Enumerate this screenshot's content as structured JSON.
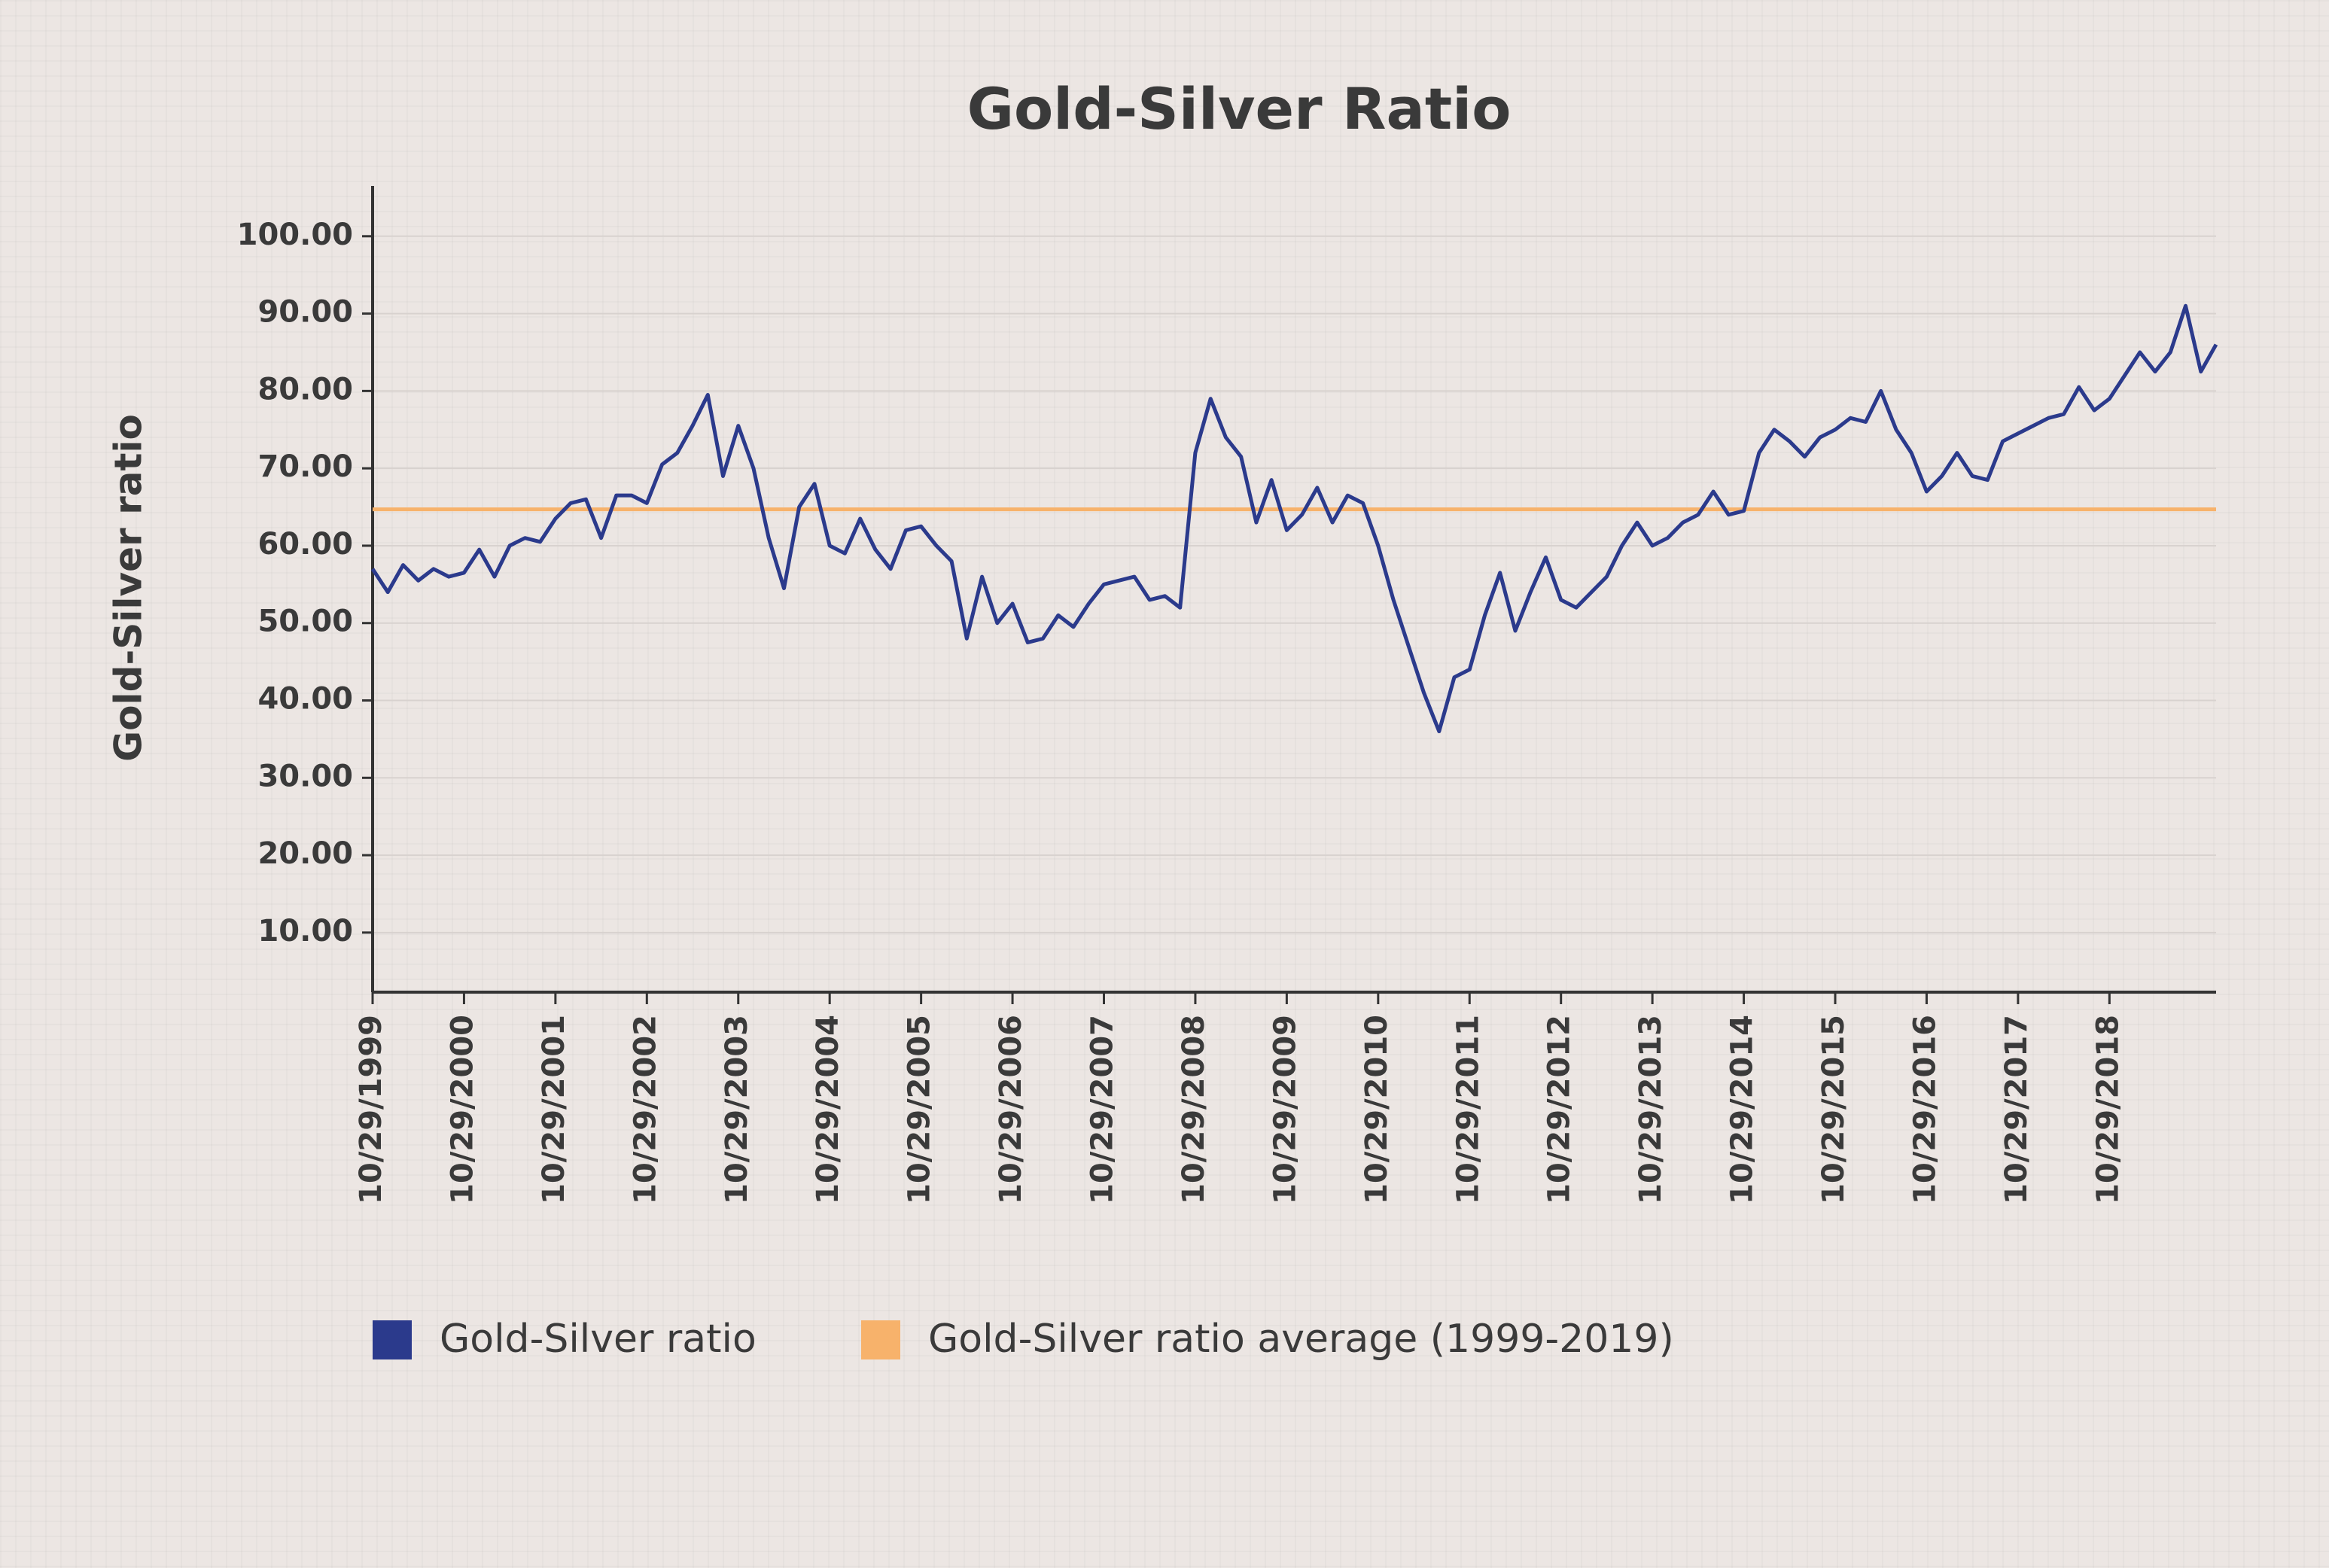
{
  "chart_data": {
    "type": "line",
    "title": "Gold-Silver Ratio",
    "y_label": "Gold-Silver ratio",
    "x": [
      "10/29/1999",
      "12/29/1999",
      "02/29/2000",
      "04/29/2000",
      "06/29/2000",
      "08/29/2000",
      "10/29/2000",
      "12/29/2000",
      "02/29/2001",
      "04/29/2001",
      "06/29/2001",
      "08/29/2001",
      "10/29/2001",
      "12/29/2001",
      "02/29/2002",
      "04/29/2002",
      "06/29/2002",
      "08/29/2002",
      "10/29/2002",
      "12/29/2002",
      "02/29/2003",
      "04/29/2003",
      "06/29/2003",
      "08/29/2003",
      "10/29/2003",
      "12/29/2003",
      "02/29/2004",
      "04/29/2004",
      "06/29/2004",
      "08/29/2004",
      "10/29/2004",
      "12/29/2004",
      "02/29/2005",
      "04/29/2005",
      "06/29/2005",
      "08/29/2005",
      "10/29/2005",
      "12/29/2005",
      "02/29/2006",
      "04/29/2006",
      "06/29/2006",
      "08/29/2006",
      "10/29/2006",
      "12/29/2006",
      "02/29/2007",
      "04/29/2007",
      "06/29/2007",
      "08/29/2007",
      "10/29/2007",
      "12/29/2007",
      "02/29/2008",
      "04/29/2008",
      "06/29/2008",
      "08/29/2008",
      "10/29/2008",
      "12/29/2008",
      "02/29/2009",
      "04/29/2009",
      "06/29/2009",
      "08/29/2009",
      "10/29/2009",
      "12/29/2009",
      "02/29/2010",
      "04/29/2010",
      "06/29/2010",
      "08/29/2010",
      "10/29/2010",
      "12/29/2010",
      "02/29/2011",
      "04/29/2011",
      "06/29/2011",
      "08/29/2011",
      "10/29/2011",
      "12/29/2011",
      "02/29/2012",
      "04/29/2012",
      "06/29/2012",
      "08/29/2012",
      "10/29/2012",
      "12/29/2012",
      "02/29/2013",
      "04/29/2013",
      "06/29/2013",
      "08/29/2013",
      "10/29/2013",
      "12/29/2013",
      "02/29/2014",
      "04/29/2014",
      "06/29/2014",
      "08/29/2014",
      "10/29/2014",
      "12/29/2014",
      "02/29/2015",
      "04/29/2015",
      "06/29/2015",
      "08/29/2015",
      "10/29/2015",
      "12/29/2015",
      "02/29/2016",
      "04/29/2016",
      "06/29/2016",
      "08/29/2016",
      "10/29/2016",
      "12/29/2016",
      "02/29/2017",
      "04/29/2017",
      "06/29/2017",
      "08/29/2017",
      "10/29/2017",
      "12/29/2017",
      "02/29/2018",
      "04/29/2018",
      "06/29/2018",
      "08/29/2018",
      "10/29/2018",
      "12/29/2018",
      "02/29/2019",
      "04/29/2019",
      "06/29/2019",
      "08/29/2019",
      "10/29/2019",
      "12/29/2019"
    ],
    "series": [
      {
        "name": "Gold-Silver ratio",
        "color": "#2b3a8c",
        "values": [
          57,
          54,
          57.5,
          55.5,
          57,
          56,
          56.5,
          59.5,
          56,
          60,
          61,
          60.5,
          63.5,
          65.5,
          66,
          61,
          66.5,
          66.5,
          65.5,
          70.5,
          72,
          75.5,
          79.5,
          69,
          75.5,
          70,
          61,
          54.5,
          65,
          68,
          60,
          59,
          63.5,
          59.5,
          57,
          62,
          62.5,
          60,
          58,
          48,
          56,
          50,
          52.5,
          47.5,
          48,
          51,
          49.5,
          52.5,
          55,
          55.5,
          56,
          53,
          53.5,
          52,
          72,
          79,
          74,
          71.5,
          63,
          68.5,
          62,
          64,
          67.5,
          63,
          66.5,
          65.5,
          60,
          53,
          47,
          41,
          36,
          43,
          44,
          51,
          56.5,
          49,
          54,
          58.5,
          53,
          52,
          54,
          56,
          60,
          63,
          60,
          61,
          63,
          64,
          67,
          64,
          64.5,
          72,
          75,
          73.5,
          71.5,
          74,
          75,
          76.5,
          76,
          80,
          75,
          72,
          67,
          69,
          72,
          69,
          68.5,
          73.5,
          74.5,
          75.5,
          76.5,
          77,
          80.5,
          77.5,
          79,
          82,
          85,
          82.5,
          85,
          91,
          82.5,
          86
        ]
      }
    ],
    "average": {
      "name": "Gold-Silver ratio average (1999-2019)",
      "color": "#f7b26b",
      "value": 64.7
    },
    "xlim": [
      "10/29/1999",
      "12/29/2019"
    ],
    "xticks": [
      "10/29/1999",
      "10/29/2000",
      "10/29/2001",
      "10/29/2002",
      "10/29/2003",
      "10/29/2004",
      "10/29/2005",
      "10/29/2006",
      "10/29/2007",
      "10/29/2008",
      "10/29/2009",
      "10/29/2010",
      "10/29/2011",
      "10/29/2012",
      "10/29/2013",
      "10/29/2014",
      "10/29/2015",
      "10/29/2016",
      "10/29/2017",
      "10/29/2018"
    ],
    "ylim": [
      2.3,
      106.5
    ],
    "yticks": [
      {
        "value": 10,
        "label": "10.00"
      },
      {
        "value": 20,
        "label": "20.00"
      },
      {
        "value": 30,
        "label": "30.00"
      },
      {
        "value": 40,
        "label": "40.00"
      },
      {
        "value": 50,
        "label": "50.00"
      },
      {
        "value": 60,
        "label": "60.00"
      },
      {
        "value": 70,
        "label": "70.00"
      },
      {
        "value": 80,
        "label": "80.00"
      },
      {
        "value": 90,
        "label": "90.00"
      },
      {
        "value": 100,
        "label": "100.00"
      }
    ],
    "grid": true
  }
}
